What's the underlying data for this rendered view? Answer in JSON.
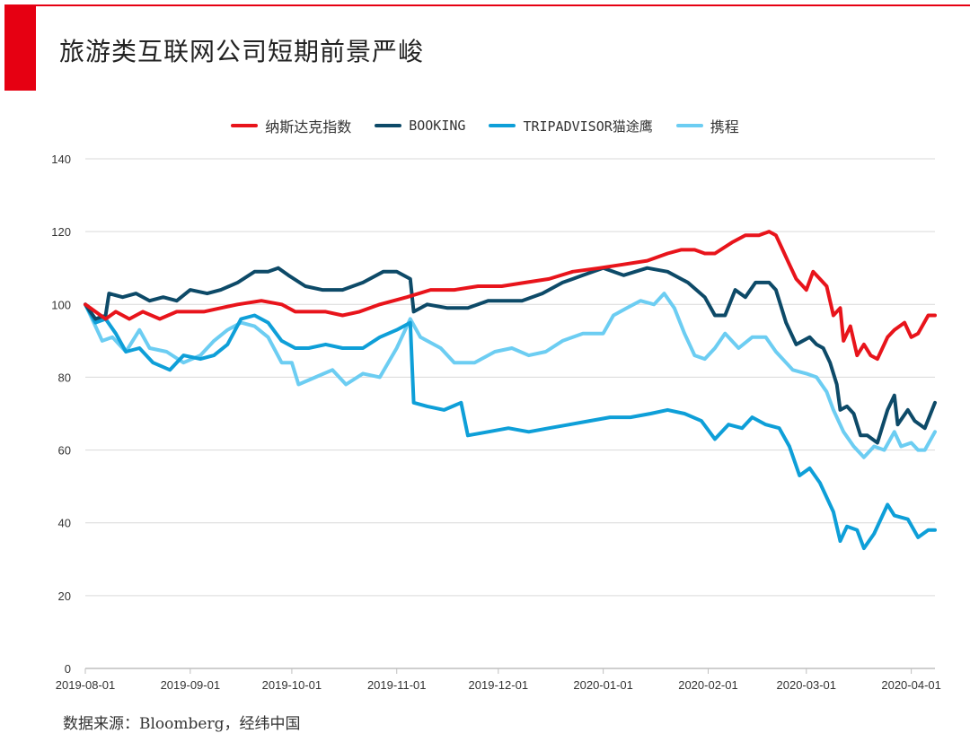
{
  "page_title": "旅游类互联网公司短期前景严峻",
  "source": "数据来源：Bloomberg，经纬中国",
  "colors": {
    "brand": "#e60012",
    "nasdaq": "#e8141b",
    "booking": "#0d4a68",
    "tripadvisor": "#0e9fd8",
    "ctrip": "#6ccdf2",
    "grid": "#d9d9d9",
    "axis": "#bfbfbf",
    "tick": "#333333"
  },
  "chart_data": {
    "type": "line",
    "title": "旅游类互联网公司短期前景严峻",
    "xlabel": "",
    "ylabel": "",
    "ylim": [
      0,
      140
    ],
    "yticks": [
      0,
      20,
      40,
      60,
      80,
      100,
      120,
      140
    ],
    "x_start": "2019-08-01",
    "x_end": "2020-04-08",
    "x_ticks": [
      "2019-08-01",
      "2019-09-01",
      "2019-10-01",
      "2019-11-01",
      "2019-12-01",
      "2020-01-01",
      "2020-02-01",
      "2020-03-01",
      "2020-04-01"
    ],
    "grid": true,
    "legend_position": "top-center",
    "series": [
      {
        "key": "nasdaq",
        "name": "纳斯达克指数",
        "color": "#e8141b",
        "points": [
          [
            "2019-08-01",
            100
          ],
          [
            "2019-08-04",
            98
          ],
          [
            "2019-08-07",
            96
          ],
          [
            "2019-08-10",
            98
          ],
          [
            "2019-08-14",
            96
          ],
          [
            "2019-08-18",
            98
          ],
          [
            "2019-08-23",
            96
          ],
          [
            "2019-08-28",
            98
          ],
          [
            "2019-09-05",
            98
          ],
          [
            "2019-09-10",
            99
          ],
          [
            "2019-09-15",
            100
          ],
          [
            "2019-09-22",
            101
          ],
          [
            "2019-09-28",
            100
          ],
          [
            "2019-10-02",
            98
          ],
          [
            "2019-10-06",
            98
          ],
          [
            "2019-10-11",
            98
          ],
          [
            "2019-10-16",
            97
          ],
          [
            "2019-10-21",
            98
          ],
          [
            "2019-10-27",
            100
          ],
          [
            "2019-11-04",
            102
          ],
          [
            "2019-11-11",
            104
          ],
          [
            "2019-11-18",
            104
          ],
          [
            "2019-11-25",
            105
          ],
          [
            "2019-12-02",
            105
          ],
          [
            "2019-12-09",
            106
          ],
          [
            "2019-12-16",
            107
          ],
          [
            "2019-12-23",
            109
          ],
          [
            "2019-12-31",
            110
          ],
          [
            "2020-01-07",
            111
          ],
          [
            "2020-01-14",
            112
          ],
          [
            "2020-01-20",
            114
          ],
          [
            "2020-01-24",
            115
          ],
          [
            "2020-01-28",
            115
          ],
          [
            "2020-01-31",
            114
          ],
          [
            "2020-02-03",
            114
          ],
          [
            "2020-02-08",
            117
          ],
          [
            "2020-02-12",
            119
          ],
          [
            "2020-02-16",
            119
          ],
          [
            "2020-02-19",
            120
          ],
          [
            "2020-02-21",
            119
          ],
          [
            "2020-02-23",
            115
          ],
          [
            "2020-02-25",
            111
          ],
          [
            "2020-02-27",
            107
          ],
          [
            "2020-03-01",
            104
          ],
          [
            "2020-03-03",
            109
          ],
          [
            "2020-03-05",
            107
          ],
          [
            "2020-03-07",
            105
          ],
          [
            "2020-03-09",
            97
          ],
          [
            "2020-03-11",
            99
          ],
          [
            "2020-03-12",
            90
          ],
          [
            "2020-03-14",
            94
          ],
          [
            "2020-03-16",
            86
          ],
          [
            "2020-03-18",
            89
          ],
          [
            "2020-03-20",
            86
          ],
          [
            "2020-03-22",
            85
          ],
          [
            "2020-03-25",
            91
          ],
          [
            "2020-03-27",
            93
          ],
          [
            "2020-03-30",
            95
          ],
          [
            "2020-04-01",
            91
          ],
          [
            "2020-04-03",
            92
          ],
          [
            "2020-04-06",
            97
          ],
          [
            "2020-04-08",
            97
          ]
        ]
      },
      {
        "key": "booking",
        "name": "BOOKING",
        "color": "#0d4a68",
        "points": [
          [
            "2019-08-01",
            100
          ],
          [
            "2019-08-04",
            96
          ],
          [
            "2019-08-07",
            97
          ],
          [
            "2019-08-08",
            103
          ],
          [
            "2019-08-12",
            102
          ],
          [
            "2019-08-16",
            103
          ],
          [
            "2019-08-20",
            101
          ],
          [
            "2019-08-24",
            102
          ],
          [
            "2019-08-28",
            101
          ],
          [
            "2019-09-01",
            104
          ],
          [
            "2019-09-06",
            103
          ],
          [
            "2019-09-10",
            104
          ],
          [
            "2019-09-15",
            106
          ],
          [
            "2019-09-20",
            109
          ],
          [
            "2019-09-24",
            109
          ],
          [
            "2019-09-27",
            110
          ],
          [
            "2019-09-30",
            108
          ],
          [
            "2019-10-05",
            105
          ],
          [
            "2019-10-10",
            104
          ],
          [
            "2019-10-16",
            104
          ],
          [
            "2019-10-22",
            106
          ],
          [
            "2019-10-28",
            109
          ],
          [
            "2019-11-01",
            109
          ],
          [
            "2019-11-05",
            107
          ],
          [
            "2019-11-06",
            98
          ],
          [
            "2019-11-10",
            100
          ],
          [
            "2019-11-16",
            99
          ],
          [
            "2019-11-22",
            99
          ],
          [
            "2019-11-28",
            101
          ],
          [
            "2019-12-04",
            101
          ],
          [
            "2019-12-08",
            101
          ],
          [
            "2019-12-14",
            103
          ],
          [
            "2019-12-20",
            106
          ],
          [
            "2019-12-26",
            108
          ],
          [
            "2020-01-01",
            110
          ],
          [
            "2020-01-07",
            108
          ],
          [
            "2020-01-14",
            110
          ],
          [
            "2020-01-20",
            109
          ],
          [
            "2020-01-26",
            106
          ],
          [
            "2020-01-31",
            102
          ],
          [
            "2020-02-03",
            97
          ],
          [
            "2020-02-06",
            97
          ],
          [
            "2020-02-09",
            104
          ],
          [
            "2020-02-12",
            102
          ],
          [
            "2020-02-15",
            106
          ],
          [
            "2020-02-19",
            106
          ],
          [
            "2020-02-21",
            104
          ],
          [
            "2020-02-24",
            95
          ],
          [
            "2020-02-27",
            89
          ],
          [
            "2020-03-02",
            91
          ],
          [
            "2020-03-04",
            89
          ],
          [
            "2020-03-06",
            88
          ],
          [
            "2020-03-08",
            84
          ],
          [
            "2020-03-10",
            78
          ],
          [
            "2020-03-11",
            71
          ],
          [
            "2020-03-13",
            72
          ],
          [
            "2020-03-15",
            70
          ],
          [
            "2020-03-17",
            64
          ],
          [
            "2020-03-19",
            64
          ],
          [
            "2020-03-22",
            62
          ],
          [
            "2020-03-25",
            71
          ],
          [
            "2020-03-27",
            75
          ],
          [
            "2020-03-28",
            67
          ],
          [
            "2020-03-31",
            71
          ],
          [
            "2020-04-02",
            68
          ],
          [
            "2020-04-05",
            66
          ],
          [
            "2020-04-08",
            73
          ]
        ]
      },
      {
        "key": "tripadvisor",
        "name": "TRIPADVISOR猫途鹰",
        "color": "#0e9fd8",
        "points": [
          [
            "2019-08-01",
            100
          ],
          [
            "2019-08-04",
            95
          ],
          [
            "2019-08-07",
            96
          ],
          [
            "2019-08-10",
            92
          ],
          [
            "2019-08-13",
            87
          ],
          [
            "2019-08-17",
            88
          ],
          [
            "2019-08-21",
            84
          ],
          [
            "2019-08-26",
            82
          ],
          [
            "2019-08-30",
            86
          ],
          [
            "2019-09-04",
            85
          ],
          [
            "2019-09-08",
            86
          ],
          [
            "2019-09-12",
            89
          ],
          [
            "2019-09-16",
            96
          ],
          [
            "2019-09-20",
            97
          ],
          [
            "2019-09-24",
            95
          ],
          [
            "2019-09-28",
            90
          ],
          [
            "2019-10-02",
            88
          ],
          [
            "2019-10-06",
            88
          ],
          [
            "2019-10-11",
            89
          ],
          [
            "2019-10-16",
            88
          ],
          [
            "2019-10-22",
            88
          ],
          [
            "2019-10-27",
            91
          ],
          [
            "2019-11-01",
            93
          ],
          [
            "2019-11-05",
            95
          ],
          [
            "2019-11-06",
            73
          ],
          [
            "2019-11-10",
            72
          ],
          [
            "2019-11-15",
            71
          ],
          [
            "2019-11-20",
            73
          ],
          [
            "2019-11-22",
            64
          ],
          [
            "2019-11-28",
            65
          ],
          [
            "2019-12-04",
            66
          ],
          [
            "2019-12-10",
            65
          ],
          [
            "2019-12-16",
            66
          ],
          [
            "2019-12-22",
            67
          ],
          [
            "2019-12-28",
            68
          ],
          [
            "2020-01-03",
            69
          ],
          [
            "2020-01-09",
            69
          ],
          [
            "2020-01-15",
            70
          ],
          [
            "2020-01-20",
            71
          ],
          [
            "2020-01-25",
            70
          ],
          [
            "2020-01-30",
            68
          ],
          [
            "2020-02-03",
            63
          ],
          [
            "2020-02-07",
            67
          ],
          [
            "2020-02-11",
            66
          ],
          [
            "2020-02-14",
            69
          ],
          [
            "2020-02-18",
            67
          ],
          [
            "2020-02-22",
            66
          ],
          [
            "2020-02-25",
            61
          ],
          [
            "2020-02-28",
            53
          ],
          [
            "2020-03-02",
            55
          ],
          [
            "2020-03-05",
            51
          ],
          [
            "2020-03-09",
            43
          ],
          [
            "2020-03-11",
            35
          ],
          [
            "2020-03-13",
            39
          ],
          [
            "2020-03-16",
            38
          ],
          [
            "2020-03-18",
            33
          ],
          [
            "2020-03-21",
            37
          ],
          [
            "2020-03-25",
            45
          ],
          [
            "2020-03-27",
            42
          ],
          [
            "2020-03-31",
            41
          ],
          [
            "2020-04-03",
            36
          ],
          [
            "2020-04-06",
            38
          ],
          [
            "2020-04-08",
            38
          ]
        ]
      },
      {
        "key": "ctrip",
        "name": "携程",
        "color": "#6ccdf2",
        "points": [
          [
            "2019-08-01",
            100
          ],
          [
            "2019-08-04",
            94
          ],
          [
            "2019-08-06",
            90
          ],
          [
            "2019-08-09",
            91
          ],
          [
            "2019-08-13",
            87
          ],
          [
            "2019-08-17",
            93
          ],
          [
            "2019-08-20",
            88
          ],
          [
            "2019-08-25",
            87
          ],
          [
            "2019-08-30",
            84
          ],
          [
            "2019-09-04",
            86
          ],
          [
            "2019-09-08",
            90
          ],
          [
            "2019-09-12",
            93
          ],
          [
            "2019-09-16",
            95
          ],
          [
            "2019-09-20",
            94
          ],
          [
            "2019-09-24",
            91
          ],
          [
            "2019-09-28",
            84
          ],
          [
            "2019-10-01",
            84
          ],
          [
            "2019-10-03",
            78
          ],
          [
            "2019-10-08",
            80
          ],
          [
            "2019-10-13",
            82
          ],
          [
            "2019-10-17",
            78
          ],
          [
            "2019-10-22",
            81
          ],
          [
            "2019-10-27",
            80
          ],
          [
            "2019-11-01",
            88
          ],
          [
            "2019-11-05",
            96
          ],
          [
            "2019-11-08",
            91
          ],
          [
            "2019-11-14",
            88
          ],
          [
            "2019-11-18",
            84
          ],
          [
            "2019-11-24",
            84
          ],
          [
            "2019-11-30",
            87
          ],
          [
            "2019-12-05",
            88
          ],
          [
            "2019-12-10",
            86
          ],
          [
            "2019-12-15",
            87
          ],
          [
            "2019-12-20",
            90
          ],
          [
            "2019-12-26",
            92
          ],
          [
            "2020-01-01",
            92
          ],
          [
            "2020-01-04",
            97
          ],
          [
            "2020-01-08",
            99
          ],
          [
            "2020-01-12",
            101
          ],
          [
            "2020-01-16",
            100
          ],
          [
            "2020-01-19",
            103
          ],
          [
            "2020-01-22",
            99
          ],
          [
            "2020-01-25",
            92
          ],
          [
            "2020-01-28",
            86
          ],
          [
            "2020-01-31",
            85
          ],
          [
            "2020-02-03",
            88
          ],
          [
            "2020-02-06",
            92
          ],
          [
            "2020-02-10",
            88
          ],
          [
            "2020-02-14",
            91
          ],
          [
            "2020-02-18",
            91
          ],
          [
            "2020-02-21",
            87
          ],
          [
            "2020-02-24",
            84
          ],
          [
            "2020-02-26",
            82
          ],
          [
            "2020-03-01",
            81
          ],
          [
            "2020-03-04",
            80
          ],
          [
            "2020-03-07",
            76
          ],
          [
            "2020-03-09",
            71
          ],
          [
            "2020-03-12",
            65
          ],
          [
            "2020-03-15",
            61
          ],
          [
            "2020-03-18",
            58
          ],
          [
            "2020-03-21",
            61
          ],
          [
            "2020-03-24",
            60
          ],
          [
            "2020-03-27",
            65
          ],
          [
            "2020-03-29",
            61
          ],
          [
            "2020-04-01",
            62
          ],
          [
            "2020-04-03",
            60
          ],
          [
            "2020-04-05",
            60
          ],
          [
            "2020-04-08",
            65
          ]
        ]
      }
    ]
  }
}
